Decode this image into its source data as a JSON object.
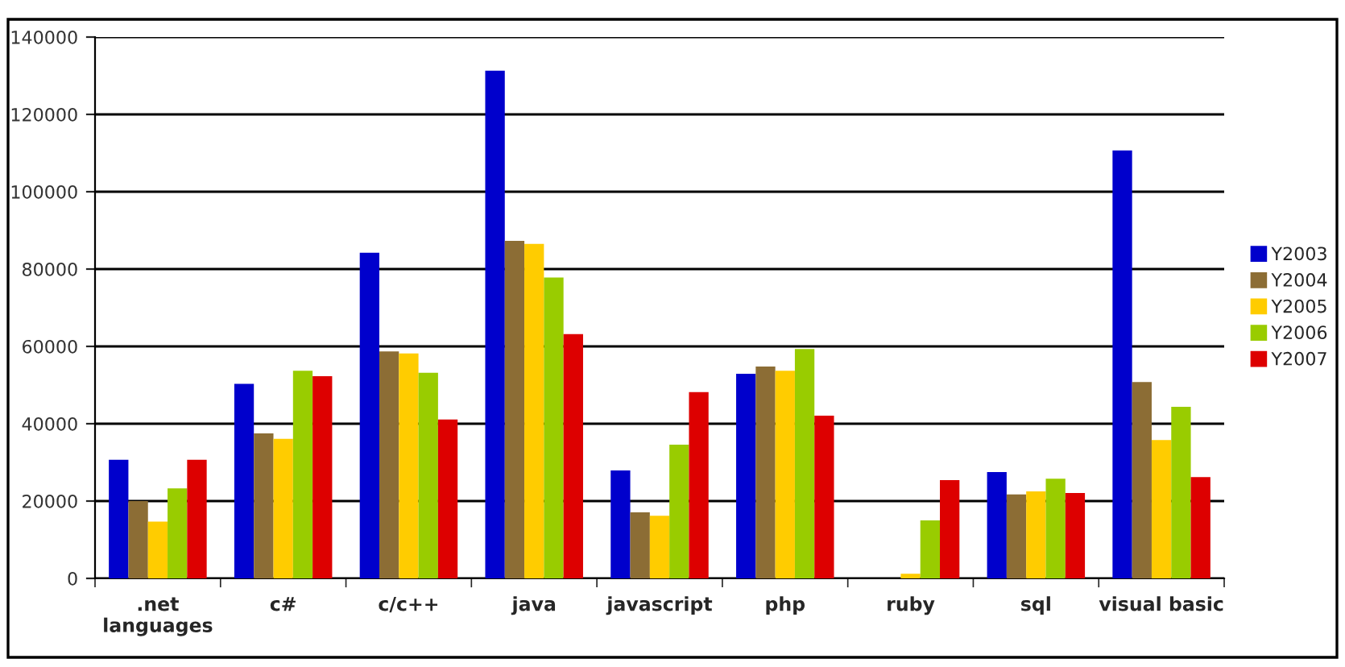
{
  "chart_data": {
    "type": "bar",
    "categories": [
      ".net languages",
      "c#",
      "c/c++",
      "java",
      "javascript",
      "php",
      "ruby",
      "sql",
      "visual basic"
    ],
    "series": [
      {
        "name": "Y2003",
        "color": "#0000cc",
        "values": [
          30700,
          50300,
          84200,
          131300,
          27900,
          52900,
          null,
          27500,
          110700
        ]
      },
      {
        "name": "Y2004",
        "color": "#8c6d35",
        "values": [
          20000,
          37500,
          58700,
          87300,
          17100,
          54800,
          null,
          21700,
          50800
        ]
      },
      {
        "name": "Y2005",
        "color": "#ffcc00",
        "values": [
          14700,
          36100,
          58200,
          86500,
          16200,
          53700,
          1200,
          22500,
          35800
        ]
      },
      {
        "name": "Y2006",
        "color": "#99cc00",
        "values": [
          23300,
          53700,
          53200,
          77800,
          34600,
          59300,
          15000,
          25800,
          44400
        ]
      },
      {
        "name": "Y2007",
        "color": "#dd0000",
        "values": [
          30700,
          52300,
          41100,
          63200,
          48200,
          42100,
          25400,
          22100,
          26200
        ]
      }
    ],
    "ylim": [
      0,
      140000
    ],
    "yticks": [
      0,
      20000,
      40000,
      60000,
      80000,
      100000,
      120000,
      140000
    ],
    "grid": "y",
    "legend": "right"
  }
}
